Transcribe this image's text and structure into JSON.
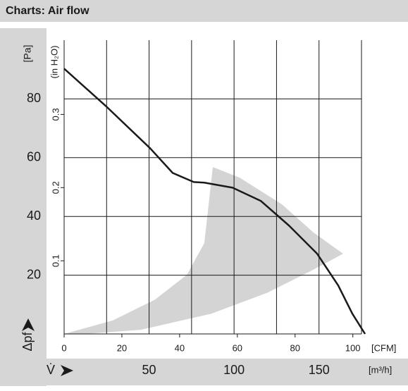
{
  "header": {
    "title": "Charts: Air flow"
  },
  "chart_data": {
    "type": "line",
    "y_label": "[Pa]",
    "y2_label": "(in H₂O)",
    "y_symbol": "Δpf",
    "x_label": "[m³/h]",
    "x_symbol": "V̇",
    "x2_label": "[CFM]",
    "xlim": [
      0,
      175
    ],
    "xticks": [
      50,
      100,
      150
    ],
    "xgrid": [
      0,
      25,
      50,
      75,
      100,
      125,
      150,
      175
    ],
    "x2lim": [
      0,
      103
    ],
    "x2ticks": [
      0,
      20,
      40,
      60,
      80,
      100
    ],
    "ylim": [
      0,
      100
    ],
    "yticks": [
      20,
      40,
      60,
      80
    ],
    "y2lim": [
      0,
      0.4015
    ],
    "y2ticks": [
      0.1,
      0.2,
      0.3
    ],
    "grid": true,
    "series": [
      {
        "color": "#1a1a1a",
        "x": [
          0,
          24.5,
          50.6,
          63.9,
          76.3,
          82.5,
          99.1,
          115.7,
          132.3,
          148.9,
          161.3,
          169.6,
          177.1
        ],
        "values": [
          90.3,
          77.6,
          63.2,
          54.8,
          51.7,
          51.5,
          49.8,
          45.3,
          36.9,
          27.3,
          16.5,
          6.9,
          0
        ]
      }
    ],
    "operating_range": {
      "color": "#d4d4d4",
      "x": [
        0,
        28.6,
        53.5,
        72.2,
        82.5,
        87.5,
        103.3,
        128.2,
        146.8,
        164.2,
        144.8,
        119.9,
        86.7,
        45.2,
        12.0
      ],
      "values": [
        0,
        4.6,
        11.7,
        20.1,
        30.9,
        56.8,
        53.2,
        44.1,
        34.5,
        27.3,
        21.3,
        14.1,
        6.9,
        1.4,
        0
      ]
    }
  }
}
